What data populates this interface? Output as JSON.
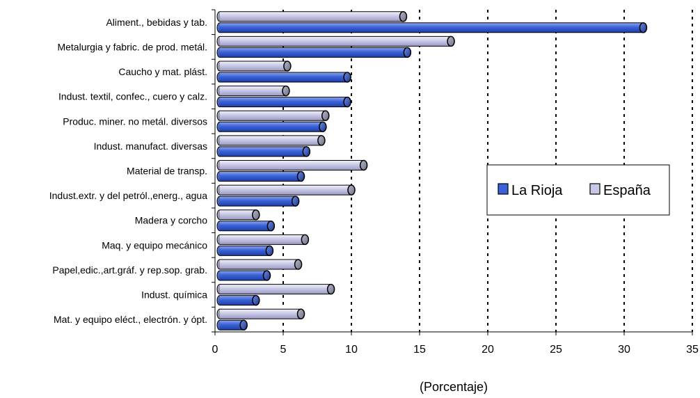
{
  "chart_data": {
    "type": "bar",
    "orientation": "horizontal",
    "title": "",
    "xlabel": "(Porcentaje)",
    "ylabel": "",
    "xlim": [
      0,
      35
    ],
    "xticks": [
      0,
      5,
      10,
      15,
      20,
      25,
      30,
      35
    ],
    "grid": "vertical-dotted",
    "legend_position": "right",
    "categories": [
      "Aliment., bebidas y tab.",
      "Metalurgia y fabric. de prod. metál.",
      "Caucho y mat. plást.",
      "Indust. textil, confec., cuero y calz.",
      "Produc. miner. no metál. diversos",
      "Indust. manufact. diversas",
      "Material de transp.",
      "Indust.extr. y del petról.,energ., agua",
      "Madera y corcho",
      "Maq. y equipo mecánico",
      "Papel,edic.,art.gráf. y rep.sop. grab.",
      "Indust. química",
      "Mat. y equipo eléct., electrón. y ópt."
    ],
    "series": [
      {
        "name": "La Rioja",
        "color": "#3a63d8",
        "values": [
          31.4,
          14.1,
          9.7,
          9.7,
          7.9,
          6.7,
          6.3,
          5.9,
          4.1,
          4.0,
          3.8,
          3.0,
          2.1
        ]
      },
      {
        "name": "España",
        "color": "#c8c8e6",
        "values": [
          13.8,
          17.3,
          5.3,
          5.2,
          8.1,
          7.8,
          10.9,
          10.0,
          3.0,
          6.6,
          6.1,
          8.5,
          6.3
        ]
      }
    ]
  }
}
